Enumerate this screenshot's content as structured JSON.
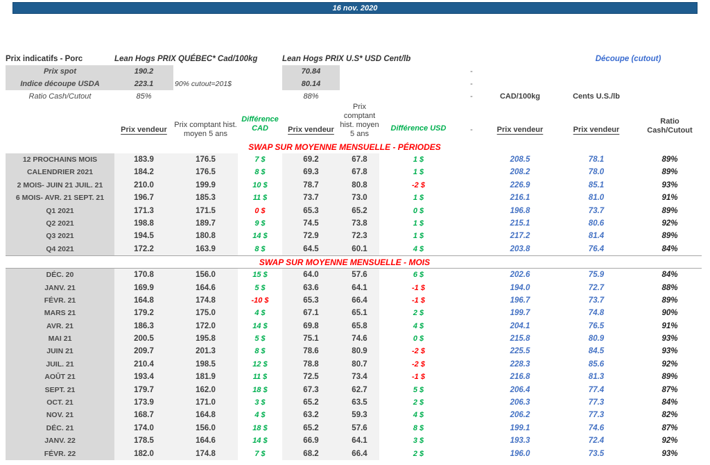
{
  "titlebar": {
    "date": "16 nov. 2020"
  },
  "header": {
    "left_title": "Prix indicatifs - Porc",
    "quebec_title": "Lean Hogs PRIX QUÉBEC* Cad/100kg",
    "us_title": "Lean Hogs PRIX U.S* USD Cent/lb",
    "cutout_title": "Découpe (cutout)",
    "rows": [
      {
        "label": "Prix spot",
        "cad": "190.2",
        "note": "",
        "usd": "70.84",
        "dash": "-"
      },
      {
        "label": "Indice découpe USDA",
        "cad": "223.1",
        "note": "90% cutout=201$",
        "usd": "80.14",
        "dash": "-"
      },
      {
        "label": "Ratio Cash/Cutout",
        "cad": "85%",
        "note": "",
        "usd": "88%",
        "dash": "-"
      }
    ],
    "units": {
      "cad": "CAD/100kg",
      "cents": "Cents U.S./lb"
    }
  },
  "columns": {
    "prix_vendeur": "Prix vendeur",
    "prix_comptant": "Prix comptant hist. moyen 5 ans",
    "diff_cad": "Différence CAD",
    "diff_usd": "Différence USD",
    "ratio": "Ratio Cash/Cutout",
    "dash": "-"
  },
  "sections": [
    {
      "title": "SWAP SUR MOYENNE MENSUELLE - PÉRIODES",
      "rows": [
        {
          "label": "12 PROCHAINS MOIS",
          "cad_pv": "183.9",
          "cad_hist": "176.5",
          "diff_cad": "7 $",
          "diff_cad_color": "g",
          "usd_pv": "69.2",
          "usd_hist": "67.8",
          "diff_usd": "1 $",
          "diff_usd_color": "g",
          "cutout_cad": "208.5",
          "cutout_cents": "78.1",
          "ratio": "89%"
        },
        {
          "label": "CALENDRIER 2021",
          "cad_pv": "184.2",
          "cad_hist": "176.5",
          "diff_cad": "8 $",
          "diff_cad_color": "g",
          "usd_pv": "69.3",
          "usd_hist": "67.8",
          "diff_usd": "1 $",
          "diff_usd_color": "g",
          "cutout_cad": "208.2",
          "cutout_cents": "78.0",
          "ratio": "89%"
        },
        {
          "label": "2 MOIS- JUIN 21 JUIL. 21",
          "cad_pv": "210.0",
          "cad_hist": "199.9",
          "diff_cad": "10 $",
          "diff_cad_color": "g",
          "usd_pv": "78.7",
          "usd_hist": "80.8",
          "diff_usd": "-2 $",
          "diff_usd_color": "r",
          "cutout_cad": "226.9",
          "cutout_cents": "85.1",
          "ratio": "93%"
        },
        {
          "label": "6 MOIS- AVR. 21 SEPT. 21",
          "cad_pv": "196.7",
          "cad_hist": "185.3",
          "diff_cad": "11 $",
          "diff_cad_color": "g",
          "usd_pv": "73.7",
          "usd_hist": "73.0",
          "diff_usd": "1 $",
          "diff_usd_color": "g",
          "cutout_cad": "216.1",
          "cutout_cents": "81.0",
          "ratio": "91%"
        },
        {
          "label": "Q1 2021",
          "cad_pv": "171.3",
          "cad_hist": "171.5",
          "diff_cad": "0 $",
          "diff_cad_color": "r",
          "usd_pv": "65.3",
          "usd_hist": "65.2",
          "diff_usd": "0 $",
          "diff_usd_color": "g",
          "cutout_cad": "196.8",
          "cutout_cents": "73.7",
          "ratio": "89%"
        },
        {
          "label": "Q2 2021",
          "cad_pv": "198.8",
          "cad_hist": "189.7",
          "diff_cad": "9 $",
          "diff_cad_color": "g",
          "usd_pv": "74.5",
          "usd_hist": "73.8",
          "diff_usd": "1 $",
          "diff_usd_color": "g",
          "cutout_cad": "215.1",
          "cutout_cents": "80.6",
          "ratio": "92%"
        },
        {
          "label": "Q3 2021",
          "cad_pv": "194.5",
          "cad_hist": "180.8",
          "diff_cad": "14 $",
          "diff_cad_color": "g",
          "usd_pv": "72.9",
          "usd_hist": "72.3",
          "diff_usd": "1 $",
          "diff_usd_color": "g",
          "cutout_cad": "217.2",
          "cutout_cents": "81.4",
          "ratio": "89%"
        },
        {
          "label": "Q4 2021",
          "cad_pv": "172.2",
          "cad_hist": "163.9",
          "diff_cad": "8 $",
          "diff_cad_color": "g",
          "usd_pv": "64.5",
          "usd_hist": "60.1",
          "diff_usd": "4 $",
          "diff_usd_color": "g",
          "cutout_cad": "203.8",
          "cutout_cents": "76.4",
          "ratio": "84%"
        }
      ]
    },
    {
      "title": "SWAP SUR MOYENNE MENSUELLE - MOIS",
      "rows": [
        {
          "label": "DÉC. 20",
          "cad_pv": "170.8",
          "cad_hist": "156.0",
          "diff_cad": "15 $",
          "diff_cad_color": "g",
          "usd_pv": "64.0",
          "usd_hist": "57.6",
          "diff_usd": "6 $",
          "diff_usd_color": "g",
          "cutout_cad": "202.6",
          "cutout_cents": "75.9",
          "ratio": "84%"
        },
        {
          "label": "JANV. 21",
          "cad_pv": "169.9",
          "cad_hist": "164.6",
          "diff_cad": "5 $",
          "diff_cad_color": "g",
          "usd_pv": "63.6",
          "usd_hist": "64.1",
          "diff_usd": "-1 $",
          "diff_usd_color": "r",
          "cutout_cad": "194.0",
          "cutout_cents": "72.7",
          "ratio": "88%"
        },
        {
          "label": "FÉVR. 21",
          "cad_pv": "164.8",
          "cad_hist": "174.8",
          "diff_cad": "-10 $",
          "diff_cad_color": "r",
          "usd_pv": "65.3",
          "usd_hist": "66.4",
          "diff_usd": "-1 $",
          "diff_usd_color": "r",
          "cutout_cad": "196.7",
          "cutout_cents": "73.7",
          "ratio": "89%"
        },
        {
          "label": "MARS 21",
          "cad_pv": "179.2",
          "cad_hist": "175.0",
          "diff_cad": "4 $",
          "diff_cad_color": "g",
          "usd_pv": "67.1",
          "usd_hist": "65.1",
          "diff_usd": "2 $",
          "diff_usd_color": "g",
          "cutout_cad": "199.7",
          "cutout_cents": "74.8",
          "ratio": "90%"
        },
        {
          "label": "AVR. 21",
          "cad_pv": "186.3",
          "cad_hist": "172.0",
          "diff_cad": "14 $",
          "diff_cad_color": "g",
          "usd_pv": "69.8",
          "usd_hist": "65.8",
          "diff_usd": "4 $",
          "diff_usd_color": "g",
          "cutout_cad": "204.1",
          "cutout_cents": "76.5",
          "ratio": "91%"
        },
        {
          "label": "MAI 21",
          "cad_pv": "200.5",
          "cad_hist": "195.8",
          "diff_cad": "5 $",
          "diff_cad_color": "g",
          "usd_pv": "75.1",
          "usd_hist": "74.6",
          "diff_usd": "0 $",
          "diff_usd_color": "g",
          "cutout_cad": "215.8",
          "cutout_cents": "80.9",
          "ratio": "93%"
        },
        {
          "label": "JUIN 21",
          "cad_pv": "209.7",
          "cad_hist": "201.3",
          "diff_cad": "8 $",
          "diff_cad_color": "g",
          "usd_pv": "78.6",
          "usd_hist": "80.9",
          "diff_usd": "-2 $",
          "diff_usd_color": "r",
          "cutout_cad": "225.5",
          "cutout_cents": "84.5",
          "ratio": "93%"
        },
        {
          "label": "JUIL. 21",
          "cad_pv": "210.4",
          "cad_hist": "198.5",
          "diff_cad": "12 $",
          "diff_cad_color": "g",
          "usd_pv": "78.8",
          "usd_hist": "80.7",
          "diff_usd": "-2 $",
          "diff_usd_color": "r",
          "cutout_cad": "228.3",
          "cutout_cents": "85.6",
          "ratio": "92%"
        },
        {
          "label": "AOÛT 21",
          "cad_pv": "193.4",
          "cad_hist": "181.9",
          "diff_cad": "11 $",
          "diff_cad_color": "g",
          "usd_pv": "72.5",
          "usd_hist": "73.4",
          "diff_usd": "-1 $",
          "diff_usd_color": "r",
          "cutout_cad": "216.8",
          "cutout_cents": "81.3",
          "ratio": "89%"
        },
        {
          "label": "SEPT. 21",
          "cad_pv": "179.7",
          "cad_hist": "162.0",
          "diff_cad": "18 $",
          "diff_cad_color": "g",
          "usd_pv": "67.3",
          "usd_hist": "62.7",
          "diff_usd": "5 $",
          "diff_usd_color": "g",
          "cutout_cad": "206.4",
          "cutout_cents": "77.4",
          "ratio": "87%"
        },
        {
          "label": "OCT. 21",
          "cad_pv": "173.9",
          "cad_hist": "171.0",
          "diff_cad": "3 $",
          "diff_cad_color": "g",
          "usd_pv": "65.2",
          "usd_hist": "63.5",
          "diff_usd": "2 $",
          "diff_usd_color": "g",
          "cutout_cad": "206.3",
          "cutout_cents": "77.3",
          "ratio": "84%"
        },
        {
          "label": "NOV. 21",
          "cad_pv": "168.7",
          "cad_hist": "164.8",
          "diff_cad": "4 $",
          "diff_cad_color": "g",
          "usd_pv": "63.2",
          "usd_hist": "59.3",
          "diff_usd": "4 $",
          "diff_usd_color": "g",
          "cutout_cad": "206.2",
          "cutout_cents": "77.3",
          "ratio": "82%"
        },
        {
          "label": "DÉC. 21",
          "cad_pv": "174.0",
          "cad_hist": "156.0",
          "diff_cad": "18 $",
          "diff_cad_color": "g",
          "usd_pv": "65.2",
          "usd_hist": "57.6",
          "diff_usd": "8 $",
          "diff_usd_color": "g",
          "cutout_cad": "199.1",
          "cutout_cents": "74.6",
          "ratio": "87%"
        },
        {
          "label": "JANV. 22",
          "cad_pv": "178.5",
          "cad_hist": "164.6",
          "diff_cad": "14 $",
          "diff_cad_color": "g",
          "usd_pv": "66.9",
          "usd_hist": "64.1",
          "diff_usd": "3 $",
          "diff_usd_color": "g",
          "cutout_cad": "193.3",
          "cutout_cents": "72.4",
          "ratio": "92%"
        },
        {
          "label": "FÉVR. 22",
          "cad_pv": "182.0",
          "cad_hist": "174.8",
          "diff_cad": "7 $",
          "diff_cad_color": "g",
          "usd_pv": "68.2",
          "usd_hist": "66.4",
          "diff_usd": "2 $",
          "diff_usd_color": "g",
          "cutout_cad": "196.0",
          "cutout_cents": "73.5",
          "ratio": "93%"
        }
      ]
    }
  ],
  "colors": {
    "banner_bg": "#1F5C8F",
    "label_bg": "#D9D9D9",
    "band_bg": "#F2F2F2",
    "green": "#00B050",
    "red": "#FF0000",
    "blue_value": "#4472C4",
    "blue_title": "#3A6CD0",
    "section_title_red": "#FF0000",
    "text_dark": "#3F3F3F"
  }
}
